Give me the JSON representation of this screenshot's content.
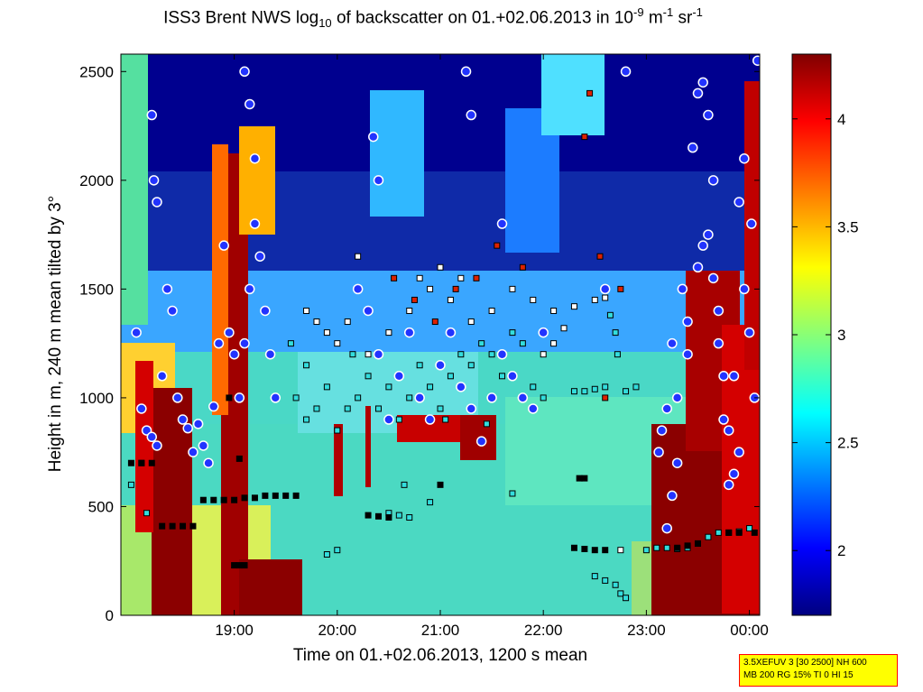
{
  "chart_data": {
    "type": "heatmap",
    "title": {
      "pre": "ISS3 Brent NWS log",
      "sub": "10",
      "mid": " of backscatter on 01.+02.06.2013 in 10",
      "sup1": "-9",
      "mid2": " m",
      "sup2": "-1",
      "mid3": " sr",
      "sup3": "-1"
    },
    "xlabel": "Time on 01.+02.06.2013, 1200 s mean",
    "ylabel": "Height in m, 240 m mean tilted by 3°",
    "x_ticks": [
      "19:00",
      "20:00",
      "21:00",
      "22:00",
      "23:00",
      "00:00"
    ],
    "x_tick_hours": [
      19,
      20,
      21,
      22,
      23,
      24
    ],
    "xlim_hours": [
      17.9,
      24.1
    ],
    "y_ticks": [
      "0",
      "500",
      "1000",
      "1500",
      "2000",
      "2500"
    ],
    "y_tick_values": [
      0,
      500,
      1000,
      1500,
      2000,
      2500
    ],
    "ylim": [
      0,
      2580
    ],
    "colorbar": {
      "ticks": [
        "2",
        "2.5",
        "3",
        "3.5",
        "4"
      ],
      "tick_values": [
        2,
        2.5,
        3,
        3.5,
        4
      ],
      "range": [
        1.7,
        4.3
      ],
      "colormap": "jet"
    },
    "marker_series": [
      {
        "marker": "circle",
        "color": "#2233ff",
        "edge": "#ffffff",
        "desc_values": [
          [
            18.05,
            1300
          ],
          [
            18.1,
            950
          ],
          [
            18.15,
            850
          ],
          [
            18.2,
            820
          ],
          [
            18.25,
            780
          ],
          [
            18.3,
            1100
          ],
          [
            18.35,
            1500
          ],
          [
            18.4,
            1400
          ],
          [
            18.45,
            1000
          ],
          [
            18.5,
            900
          ],
          [
            18.55,
            860
          ],
          [
            18.6,
            750
          ],
          [
            18.65,
            880
          ],
          [
            18.7,
            780
          ],
          [
            18.75,
            700
          ],
          [
            18.8,
            960
          ],
          [
            18.85,
            1250
          ],
          [
            18.9,
            1700
          ],
          [
            18.95,
            1300
          ],
          [
            19.0,
            1200
          ],
          [
            19.05,
            1000
          ],
          [
            19.1,
            1250
          ],
          [
            19.15,
            1500
          ],
          [
            19.2,
            1800
          ],
          [
            19.25,
            1650
          ],
          [
            19.3,
            1400
          ],
          [
            19.35,
            1200
          ],
          [
            19.4,
            1000
          ],
          [
            18.2,
            2300
          ],
          [
            18.22,
            2000
          ],
          [
            18.25,
            1900
          ],
          [
            19.1,
            2500
          ],
          [
            19.15,
            2350
          ],
          [
            19.2,
            2100
          ],
          [
            20.2,
            1500
          ],
          [
            20.3,
            1400
          ],
          [
            20.4,
            1200
          ],
          [
            20.5,
            900
          ],
          [
            20.6,
            1100
          ],
          [
            20.7,
            1300
          ],
          [
            20.8,
            1000
          ],
          [
            20.9,
            900
          ],
          [
            21.0,
            1150
          ],
          [
            21.1,
            1300
          ],
          [
            21.2,
            1050
          ],
          [
            21.3,
            950
          ],
          [
            21.4,
            800
          ],
          [
            21.5,
            1000
          ],
          [
            21.6,
            1200
          ],
          [
            21.7,
            1100
          ],
          [
            21.8,
            1000
          ],
          [
            21.9,
            950
          ],
          [
            22.0,
            1300
          ],
          [
            20.35,
            2200
          ],
          [
            20.4,
            2000
          ],
          [
            21.25,
            2500
          ],
          [
            21.3,
            2300
          ],
          [
            21.6,
            1800
          ],
          [
            22.6,
            1500
          ],
          [
            22.8,
            2500
          ],
          [
            23.2,
            400
          ],
          [
            23.3,
            700
          ],
          [
            23.4,
            1200
          ],
          [
            23.5,
            1600
          ],
          [
            23.55,
            1700
          ],
          [
            23.6,
            2300
          ],
          [
            23.65,
            2000
          ],
          [
            23.7,
            1400
          ],
          [
            23.75,
            900
          ],
          [
            23.8,
            600
          ],
          [
            23.85,
            1100
          ],
          [
            23.9,
            1900
          ],
          [
            23.95,
            2100
          ],
          [
            24.0,
            1300
          ],
          [
            24.05,
            1000
          ],
          [
            24.08,
            2550
          ],
          [
            23.12,
            750
          ],
          [
            23.15,
            850
          ],
          [
            23.2,
            950
          ],
          [
            23.25,
            1250
          ],
          [
            23.35,
            1500
          ],
          [
            23.45,
            2150
          ],
          [
            23.5,
            2400
          ],
          [
            23.55,
            2450
          ],
          [
            23.6,
            1750
          ],
          [
            23.65,
            1550
          ],
          [
            23.7,
            1250
          ],
          [
            23.75,
            1100
          ],
          [
            23.8,
            850
          ],
          [
            23.85,
            650
          ],
          [
            23.9,
            750
          ],
          [
            23.95,
            1500
          ],
          [
            24.02,
            1800
          ],
          [
            23.25,
            550
          ],
          [
            23.3,
            1000
          ],
          [
            23.4,
            1350
          ]
        ]
      },
      {
        "marker": "square",
        "color": "#33dddd",
        "edge": "#000000",
        "desc_values": [
          [
            19.6,
            1000
          ],
          [
            19.7,
            900
          ],
          [
            19.8,
            950
          ],
          [
            19.9,
            1050
          ],
          [
            20.0,
            850
          ],
          [
            20.1,
            950
          ],
          [
            20.2,
            1000
          ],
          [
            20.3,
            1100
          ],
          [
            20.4,
            950
          ],
          [
            20.5,
            1050
          ],
          [
            20.6,
            900
          ],
          [
            20.7,
            1000
          ],
          [
            20.8,
            1150
          ],
          [
            20.9,
            1050
          ],
          [
            21.0,
            950
          ],
          [
            21.1,
            1100
          ],
          [
            21.2,
            1200
          ],
          [
            21.3,
            1150
          ],
          [
            21.4,
            1250
          ],
          [
            21.5,
            1200
          ],
          [
            21.6,
            1100
          ],
          [
            21.7,
            1300
          ],
          [
            21.8,
            1250
          ],
          [
            21.9,
            1050
          ],
          [
            22.0,
            1000
          ],
          [
            22.3,
            1030
          ],
          [
            22.4,
            1030
          ],
          [
            22.5,
            1040
          ],
          [
            22.6,
            1050
          ],
          [
            22.8,
            1030
          ],
          [
            22.9,
            1050
          ],
          [
            23.0,
            300
          ],
          [
            23.1,
            310
          ],
          [
            23.2,
            310
          ],
          [
            23.3,
            305
          ],
          [
            23.4,
            310
          ],
          [
            23.5,
            330
          ],
          [
            23.6,
            360
          ],
          [
            23.7,
            380
          ],
          [
            23.8,
            380
          ],
          [
            23.9,
            385
          ],
          [
            24.0,
            400
          ],
          [
            20.5,
            470
          ],
          [
            20.6,
            460
          ],
          [
            20.7,
            450
          ],
          [
            21.7,
            560
          ],
          [
            20.0,
            300
          ],
          [
            19.9,
            280
          ],
          [
            22.5,
            180
          ],
          [
            22.6,
            160
          ],
          [
            22.7,
            140
          ],
          [
            22.75,
            100
          ],
          [
            22.8,
            80
          ],
          [
            18.0,
            600
          ],
          [
            18.1,
            700
          ],
          [
            18.15,
            470
          ],
          [
            19.55,
            1250
          ],
          [
            19.7,
            1150
          ],
          [
            20.15,
            1200
          ],
          [
            21.05,
            900
          ],
          [
            21.45,
            880
          ],
          [
            22.65,
            1380
          ],
          [
            22.7,
            1300
          ],
          [
            22.72,
            1200
          ],
          [
            20.65,
            600
          ],
          [
            20.9,
            520
          ]
        ]
      },
      {
        "marker": "square",
        "color": "#ffffff",
        "edge": "#000000",
        "desc_values": [
          [
            19.7,
            1400
          ],
          [
            19.8,
            1350
          ],
          [
            19.9,
            1300
          ],
          [
            20.0,
            1250
          ],
          [
            20.1,
            1350
          ],
          [
            20.3,
            1200
          ],
          [
            20.5,
            1300
          ],
          [
            20.7,
            1400
          ],
          [
            20.9,
            1500
          ],
          [
            21.0,
            1600
          ],
          [
            21.1,
            1450
          ],
          [
            21.3,
            1350
          ],
          [
            21.5,
            1400
          ],
          [
            21.7,
            1500
          ],
          [
            21.9,
            1450
          ],
          [
            22.1,
            1400
          ],
          [
            22.3,
            1420
          ],
          [
            22.5,
            1450
          ],
          [
            22.6,
            1460
          ],
          [
            20.2,
            1650
          ],
          [
            20.8,
            1550
          ],
          [
            21.2,
            1550
          ],
          [
            22.0,
            1200
          ],
          [
            22.1,
            1250
          ],
          [
            22.2,
            1320
          ],
          [
            22.75,
            300
          ]
        ]
      },
      {
        "marker": "square",
        "color": "#dd2200",
        "edge": "#000000",
        "desc_values": [
          [
            20.55,
            1550
          ],
          [
            20.75,
            1450
          ],
          [
            20.95,
            1350
          ],
          [
            21.15,
            1500
          ],
          [
            21.35,
            1550
          ],
          [
            21.55,
            1700
          ],
          [
            21.8,
            1600
          ],
          [
            22.4,
            2200
          ],
          [
            22.45,
            2400
          ],
          [
            22.6,
            1000
          ],
          [
            22.75,
            1500
          ],
          [
            22.55,
            1650
          ]
        ]
      },
      {
        "marker": "square",
        "color": "#000000",
        "edge": "#000000",
        "desc_values": [
          [
            18.0,
            700
          ],
          [
            18.1,
            700
          ],
          [
            18.2,
            700
          ],
          [
            18.3,
            410
          ],
          [
            18.4,
            410
          ],
          [
            18.5,
            410
          ],
          [
            18.6,
            410
          ],
          [
            18.7,
            530
          ],
          [
            18.8,
            530
          ],
          [
            18.9,
            530
          ],
          [
            19.0,
            530
          ],
          [
            19.1,
            540
          ],
          [
            19.2,
            540
          ],
          [
            19.3,
            550
          ],
          [
            19.4,
            550
          ],
          [
            19.5,
            550
          ],
          [
            19.6,
            550
          ],
          [
            19.0,
            230
          ],
          [
            19.05,
            230
          ],
          [
            19.1,
            230
          ],
          [
            22.35,
            630
          ],
          [
            22.4,
            630
          ],
          [
            22.3,
            310
          ],
          [
            22.4,
            305
          ],
          [
            22.5,
            300
          ],
          [
            22.6,
            300
          ],
          [
            23.3,
            310
          ],
          [
            23.4,
            320
          ],
          [
            23.5,
            330
          ],
          [
            23.8,
            380
          ],
          [
            23.9,
            380
          ],
          [
            24.05,
            380
          ],
          [
            20.3,
            460
          ],
          [
            20.4,
            455
          ],
          [
            20.5,
            450
          ],
          [
            21.0,
            600
          ],
          [
            18.95,
            1000
          ],
          [
            19.05,
            720
          ]
        ]
      }
    ]
  },
  "infobox": {
    "line1": "3.5XEFUV 3 [30 2500] NH 600",
    "line2": "MB 200 RG 15% TI 0 HI 15"
  }
}
